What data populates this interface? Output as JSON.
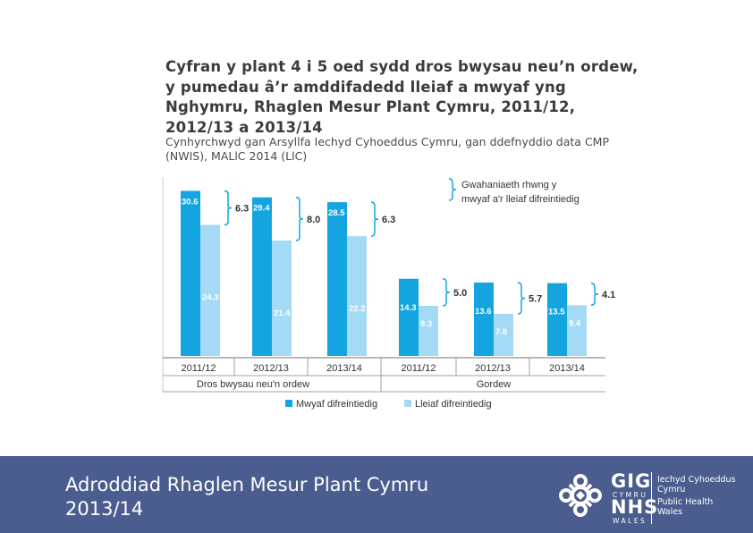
{
  "title": "Cyfran y plant 4 i 5 oed sydd dros bwysau neu’n ordew, y pumedau â’r amddifadedd lleiaf a mwyaf yng Nghymru, Rhaglen Mesur Plant Cymru, 2011/12, 2012/13 a 2013/14",
  "subtitle": "Cynhyrchwyd gan Arsyllfa Iechyd Cyhoeddus Cymru, gan ddefnyddio data CMP (NWIS), MALlC 2014 (LlC)",
  "colors": {
    "most_deprived": "#14a5e0",
    "least_deprived": "#a4daf5",
    "footer_bg": "#4b5d8f",
    "text": "#3b3b3b"
  },
  "chart_data": {
    "type": "bar",
    "groups": [
      "Dros bwysau neu'n ordew",
      "Gordew"
    ],
    "categories": [
      "2011/12",
      "2012/13",
      "2013/14",
      "2011/12",
      "2012/13",
      "2013/14"
    ],
    "series": [
      {
        "name": "Mwyaf difreintiedig",
        "values": [
          30.6,
          29.4,
          28.5,
          14.3,
          13.6,
          13.5
        ]
      },
      {
        "name": "Lleiaf difreintiedig",
        "values": [
          24.3,
          21.4,
          22.2,
          9.3,
          7.8,
          9.4
        ]
      }
    ],
    "differences": [
      6.3,
      8.0,
      6.3,
      5.0,
      5.7,
      4.1
    ],
    "difference_labels": [
      "6.3",
      "8.0",
      "6.3",
      "5.0",
      "5.7",
      "4.1"
    ],
    "value_labels_most": [
      "30.6",
      "29.4",
      "28.5",
      "14.3",
      "13.6",
      "13.5"
    ],
    "value_labels_least": [
      "24.3",
      "21.4",
      "22.2",
      "9.3",
      "7.8",
      "9.4"
    ],
    "brace_legend_line1": "Gwahaniaeth rhwng y",
    "brace_legend_line2": "mwyaf a'r lleiaf difreintiedig",
    "legend": [
      "Mwyaf difreintiedig",
      "Lleiaf difreintiedig"
    ],
    "legend_position": "bottom",
    "ylim": [
      0,
      32
    ]
  },
  "footer": {
    "title_line1": "Adroddiad Rhaglen Mesur Plant Cymru",
    "title_line2": "2013/14",
    "logo_gig": "GIG",
    "logo_cymru": "CYMRU",
    "logo_nhs": "NHS",
    "logo_wales": "WALES",
    "org_welsh_line1": "Iechyd Cyhoeddus",
    "org_welsh_line2": "Cymru",
    "org_english_line1": "Public Health",
    "org_english_line2": "Wales"
  }
}
